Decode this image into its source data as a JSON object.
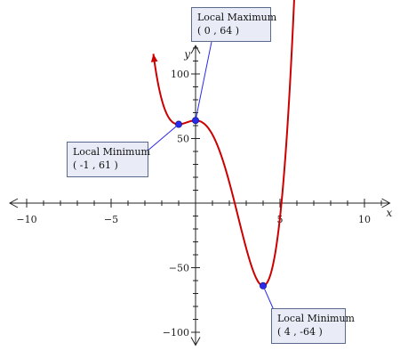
{
  "chart_data": {
    "type": "line",
    "xlabel": "x",
    "ylabel": "y",
    "xlim": [
      -11,
      11.5
    ],
    "ylim": [
      -110,
      122
    ],
    "x_ticks": [
      {
        "value": -10,
        "label": "−10"
      },
      {
        "value": -5,
        "label": "−5"
      },
      {
        "value": 5,
        "label": "5"
      },
      {
        "value": 10,
        "label": "10"
      }
    ],
    "y_ticks": [
      {
        "value": 100,
        "label": "100"
      },
      {
        "value": 50,
        "label": "50"
      },
      {
        "value": -50,
        "label": "−50"
      },
      {
        "value": -100,
        "label": "−100"
      }
    ],
    "curve": {
      "color": "#cc0000",
      "x_range": [
        -2.5,
        5.9
      ],
      "x": [
        -2.5,
        -2.0,
        -1.5,
        -1.0,
        -0.5,
        0.0,
        0.5,
        1.0,
        1.5,
        2.0,
        2.5,
        3.0,
        3.5,
        4.0,
        4.5,
        5.0,
        5.5,
        5.9
      ],
      "y": [
        104.0,
        77.0,
        64.0,
        61.0,
        62.0,
        64.0,
        61.0,
        50.0,
        32.0,
        10.0,
        -14.0,
        -37.0,
        -55.0,
        -64.0,
        -59.0,
        -35.0,
        18.0,
        88.0
      ]
    },
    "points": [
      {
        "x": -1,
        "y": 61,
        "color": "#2a2aee",
        "label": [
          "Local Minimum",
          "( -1 , 61 )"
        ]
      },
      {
        "x": 0,
        "y": 64,
        "color": "#2a2aee",
        "label": [
          "Local Maximum",
          "( 0 , 64 )"
        ]
      },
      {
        "x": 4,
        "y": -64,
        "color": "#2a2aee",
        "label": [
          "Local Minimum",
          "( 4 , -64 )"
        ]
      }
    ]
  }
}
